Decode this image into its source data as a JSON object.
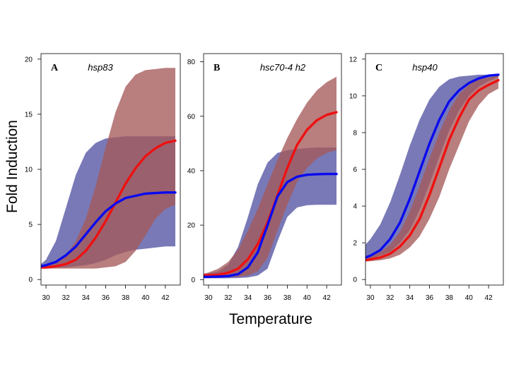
{
  "figure": {
    "ylabel": "Fold Induction",
    "xlabel": "Temperature"
  },
  "colors": {
    "blue_line": "#0a0aee",
    "red_line": "#ee1111",
    "blue_band": "#6a6aaf",
    "red_band": "#a55a5a",
    "overlap_band": "#6e3355"
  },
  "chart_data": [
    {
      "type": "line",
      "panel": "A",
      "title": "hsp83",
      "xlim": [
        29.5,
        43.5
      ],
      "ylim": [
        -0.5,
        20.5
      ],
      "xticks": [
        30,
        32,
        34,
        36,
        38,
        40,
        42
      ],
      "yticks": [
        0,
        5,
        10,
        15,
        20
      ],
      "x": [
        29.5,
        30,
        31,
        32,
        33,
        34,
        35,
        36,
        37,
        38,
        39,
        40,
        41,
        42,
        43
      ],
      "series": [
        {
          "color": "blue",
          "values": [
            1.2,
            1.3,
            1.6,
            2.2,
            3.0,
            4.1,
            5.2,
            6.2,
            6.9,
            7.4,
            7.6,
            7.8,
            7.85,
            7.9,
            7.9
          ]
        },
        {
          "color": "red",
          "values": [
            1.1,
            1.1,
            1.2,
            1.4,
            1.8,
            2.6,
            3.8,
            5.3,
            7.0,
            8.7,
            10.1,
            11.2,
            11.9,
            12.4,
            12.6
          ]
        }
      ],
      "bands": [
        {
          "color": "blue",
          "lower": [
            1.1,
            1.1,
            1.1,
            1.1,
            1.2,
            1.3,
            1.5,
            1.8,
            2.2,
            2.5,
            2.7,
            2.8,
            2.9,
            3.0,
            3.0
          ],
          "upper": [
            1.4,
            1.8,
            3.5,
            6.5,
            9.5,
            11.5,
            12.4,
            12.8,
            12.9,
            13.0,
            13.0,
            13.0,
            13.0,
            13.0,
            13.0
          ]
        },
        {
          "color": "red",
          "lower": [
            1.0,
            1.0,
            1.0,
            1.0,
            1.0,
            1.0,
            1.0,
            1.1,
            1.2,
            1.6,
            2.6,
            4.0,
            5.5,
            6.4,
            6.8
          ],
          "upper": [
            1.3,
            1.4,
            1.6,
            2.2,
            3.5,
            5.5,
            8.5,
            12.0,
            15.2,
            17.5,
            18.6,
            19.0,
            19.1,
            19.2,
            19.2
          ]
        }
      ]
    },
    {
      "type": "line",
      "panel": "B",
      "title": "hsc70-4 h2",
      "xlim": [
        29.5,
        43.5
      ],
      "ylim": [
        -2,
        83
      ],
      "xticks": [
        30,
        32,
        34,
        36,
        38,
        40,
        42
      ],
      "yticks": [
        0,
        20,
        40,
        60,
        80
      ],
      "x": [
        29.5,
        30,
        31,
        32,
        33,
        34,
        35,
        36,
        37,
        38,
        39,
        40,
        41,
        42,
        43
      ],
      "series": [
        {
          "color": "blue",
          "values": [
            1.0,
            1.0,
            1.1,
            1.3,
            2.0,
            4.5,
            10.0,
            20.0,
            30.5,
            35.8,
            37.8,
            38.5,
            38.7,
            38.8,
            38.8
          ]
        },
        {
          "color": "red",
          "values": [
            1.5,
            1.6,
            1.8,
            2.5,
            4.0,
            7.5,
            13.0,
            21.0,
            31.0,
            41.0,
            49.5,
            55.0,
            58.5,
            60.5,
            61.5
          ]
        }
      ],
      "bands": [
        {
          "color": "blue",
          "lower": [
            0.5,
            0.5,
            0.5,
            0.5,
            0.6,
            0.8,
            1.5,
            4.0,
            14.0,
            23.0,
            26.5,
            27.3,
            27.5,
            27.5,
            27.5
          ],
          "upper": [
            2.0,
            2.3,
            3.0,
            5.5,
            12.0,
            23.0,
            35.0,
            43.0,
            46.5,
            47.5,
            48.0,
            48.3,
            48.5,
            48.5,
            48.5
          ]
        },
        {
          "color": "red",
          "lower": [
            0.8,
            0.8,
            0.8,
            0.9,
            1.0,
            1.5,
            3.0,
            8.0,
            18.0,
            27.5,
            36.0,
            41.0,
            44.5,
            46.5,
            47.5
          ],
          "upper": [
            2.2,
            2.6,
            4.0,
            6.5,
            11.0,
            18.0,
            26.0,
            35.0,
            44.0,
            52.0,
            59.0,
            65.0,
            69.5,
            72.5,
            74.5
          ]
        }
      ]
    },
    {
      "type": "line",
      "panel": "C",
      "title": "hsp40",
      "xlim": [
        29.5,
        43.5
      ],
      "ylim": [
        -0.3,
        12.3
      ],
      "xticks": [
        30,
        32,
        34,
        36,
        38,
        40,
        42
      ],
      "yticks": [
        0,
        2,
        4,
        6,
        8,
        10,
        12
      ],
      "x": [
        29.5,
        30,
        31,
        32,
        33,
        34,
        35,
        36,
        37,
        38,
        39,
        40,
        41,
        42,
        43
      ],
      "series": [
        {
          "color": "blue",
          "values": [
            1.2,
            1.3,
            1.6,
            2.2,
            3.1,
            4.4,
            5.9,
            7.4,
            8.7,
            9.7,
            10.3,
            10.7,
            10.95,
            11.1,
            11.15
          ]
        },
        {
          "color": "red",
          "values": [
            1.05,
            1.1,
            1.2,
            1.4,
            1.8,
            2.4,
            3.3,
            4.6,
            6.1,
            7.6,
            8.8,
            9.8,
            10.3,
            10.6,
            10.85
          ]
        }
      ],
      "bands": [
        {
          "color": "blue",
          "lower": [
            1.1,
            1.1,
            1.3,
            1.5,
            2.0,
            2.7,
            3.8,
            5.2,
            6.7,
            8.1,
            9.2,
            10.0,
            10.5,
            10.8,
            11.0
          ],
          "upper": [
            1.9,
            2.2,
            3.0,
            4.2,
            5.7,
            7.3,
            8.7,
            9.8,
            10.5,
            10.9,
            11.05,
            11.1,
            11.15,
            11.15,
            11.2
          ]
        },
        {
          "color": "red",
          "lower": [
            1.0,
            1.0,
            1.05,
            1.15,
            1.35,
            1.75,
            2.35,
            3.3,
            4.5,
            6.0,
            7.3,
            8.6,
            9.5,
            10.1,
            10.4
          ],
          "upper": [
            1.2,
            1.3,
            1.5,
            1.9,
            2.6,
            3.7,
            5.1,
            6.6,
            8.0,
            9.2,
            10.1,
            10.6,
            10.9,
            11.0,
            11.1
          ]
        }
      ]
    }
  ]
}
